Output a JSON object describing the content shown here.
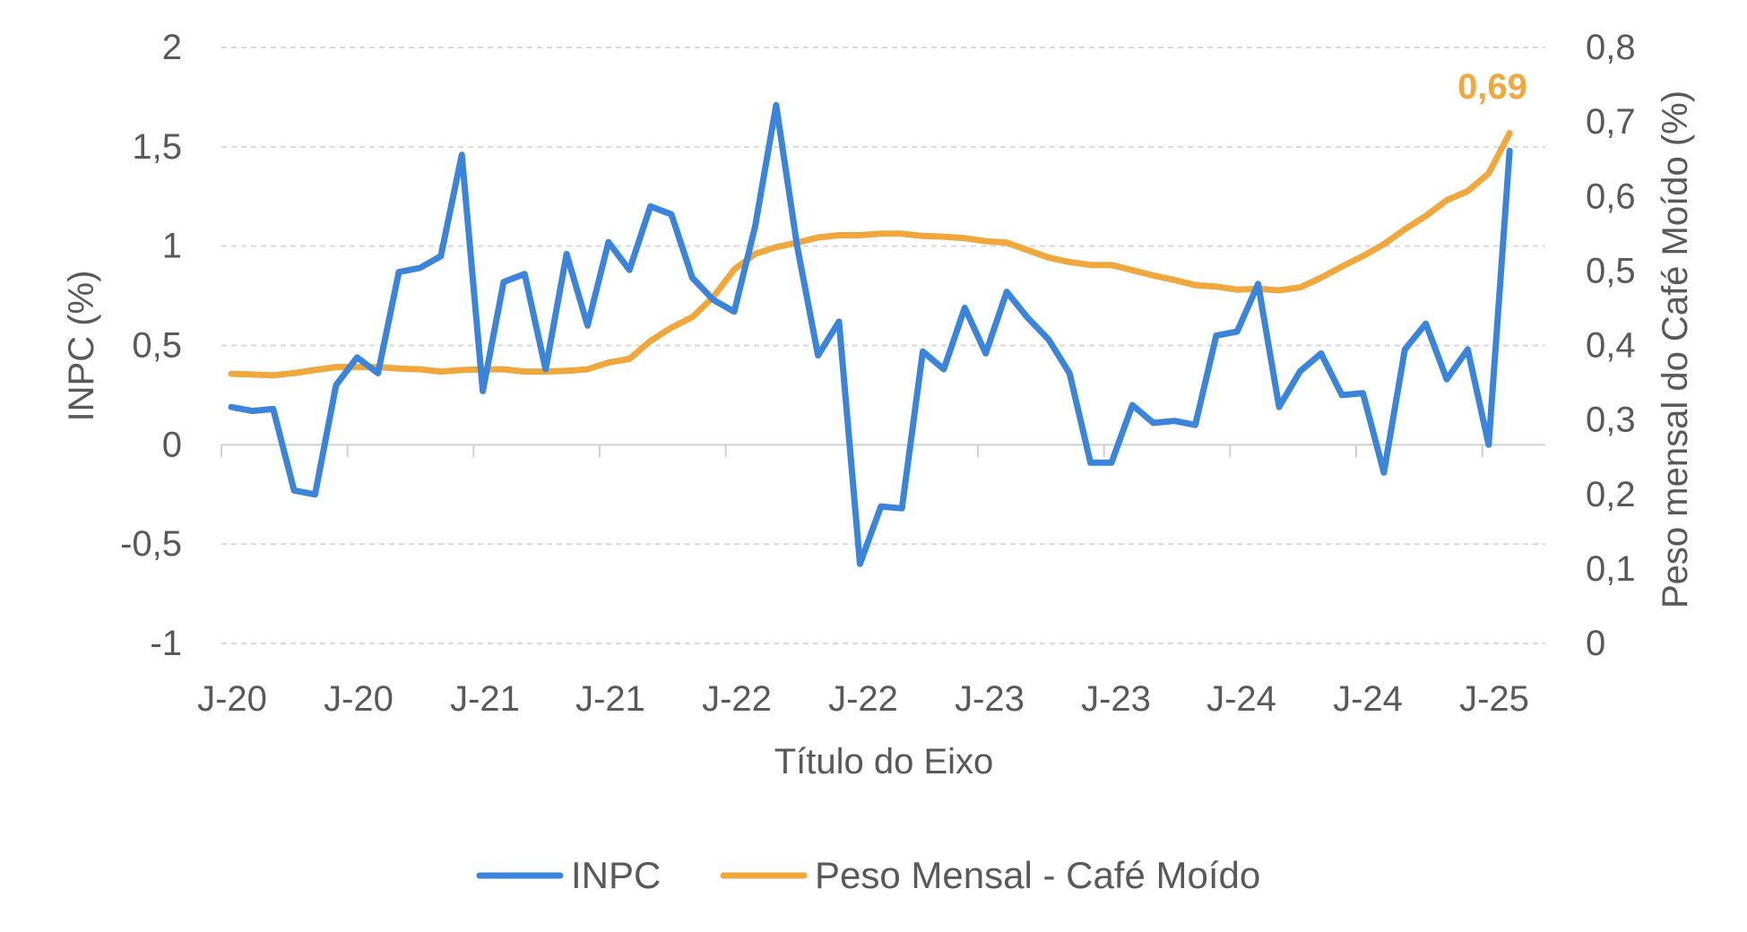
{
  "chart_data": {
    "type": "line",
    "xlabel": "Título do Eixo",
    "ylabel_left": "INPC (%)",
    "ylabel_right": "Peso mensal do Café Moído (%)",
    "ylim_left": [
      -1,
      2
    ],
    "ylim_right": [
      0,
      0.8
    ],
    "yticks_left": [
      "2",
      "1,5",
      "1",
      "0,5",
      "0",
      "-0,5",
      "-1"
    ],
    "yticks_right": [
      "0,8",
      "0,7",
      "0,6",
      "0,5",
      "0,4",
      "0,3",
      "0,2",
      "0,1",
      "0"
    ],
    "x_tick_labels": [
      "J-20",
      "J-20",
      "J-21",
      "J-21",
      "J-22",
      "J-22",
      "J-23",
      "J-23",
      "J-24",
      "J-24",
      "J-25"
    ],
    "grid": true,
    "legend_position": "bottom",
    "colors": {
      "inpc": "#3A85DB",
      "cafe": "#F0A83C"
    },
    "series": [
      {
        "name": "INPC",
        "axis": "left",
        "color": "#3A85DB",
        "values": [
          0.19,
          0.17,
          0.18,
          -0.23,
          -0.25,
          0.3,
          0.44,
          0.36,
          0.87,
          0.89,
          0.95,
          1.46,
          0.27,
          0.82,
          0.86,
          0.38,
          0.96,
          0.6,
          1.02,
          0.88,
          1.2,
          1.16,
          0.84,
          0.73,
          0.67,
          1.1,
          1.71,
          1.0,
          0.45,
          0.62,
          -0.6,
          -0.31,
          -0.32,
          0.47,
          0.38,
          0.69,
          0.46,
          0.77,
          0.64,
          0.53,
          0.36,
          -0.09,
          -0.09,
          0.2,
          0.11,
          0.12,
          0.1,
          0.55,
          0.57,
          0.81,
          0.19,
          0.37,
          0.46,
          0.25,
          0.26,
          -0.14,
          0.48,
          0.61,
          0.33,
          0.48,
          0.0,
          1.48
        ]
      },
      {
        "name": "Peso Mensal - Café Moído",
        "axis": "right",
        "color": "#F0A83C",
        "values": [
          0.362,
          0.361,
          0.36,
          0.363,
          0.367,
          0.371,
          0.371,
          0.371,
          0.369,
          0.368,
          0.365,
          0.367,
          0.368,
          0.368,
          0.365,
          0.365,
          0.366,
          0.368,
          0.377,
          0.382,
          0.406,
          0.424,
          0.438,
          0.465,
          0.502,
          0.523,
          0.532,
          0.538,
          0.545,
          0.548,
          0.548,
          0.55,
          0.55,
          0.547,
          0.546,
          0.544,
          0.54,
          0.538,
          0.528,
          0.518,
          0.512,
          0.508,
          0.508,
          0.501,
          0.494,
          0.488,
          0.481,
          0.479,
          0.475,
          0.476,
          0.474,
          0.478,
          0.491,
          0.506,
          0.52,
          0.536,
          0.556,
          0.574,
          0.595,
          0.607,
          0.631,
          0.685
        ]
      }
    ],
    "annotations": [
      {
        "text": "0,69",
        "series": "Peso Mensal - Café Moído",
        "color": "#F0A83C"
      }
    ]
  }
}
